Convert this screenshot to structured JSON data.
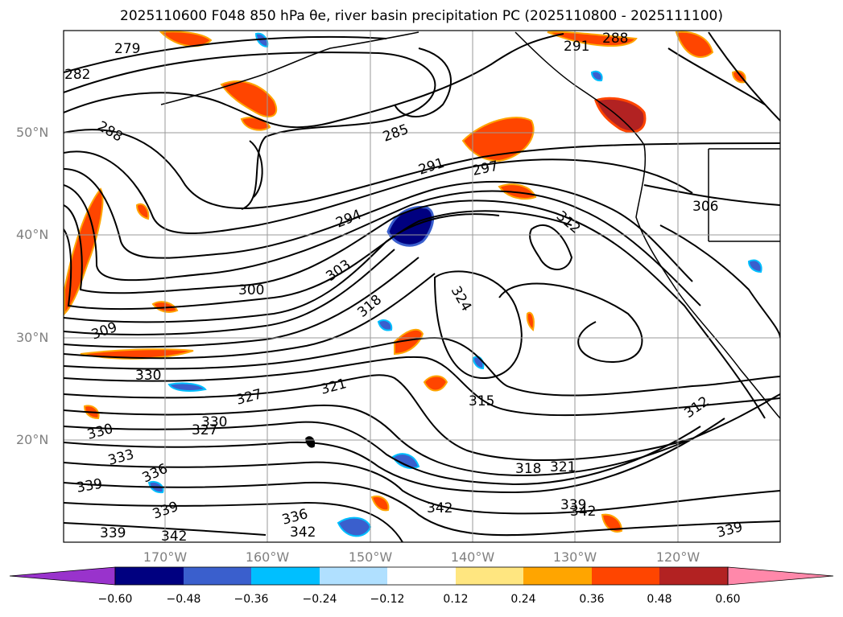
{
  "title": {
    "text": "2025110600 F048 850 hPa θe, river basin precipitation PC (2025110800 - 2025111100)"
  },
  "map": {
    "lat_labels": [
      "50°N",
      "40°N",
      "30°N",
      "20°N"
    ],
    "lon_labels": [
      "170°W",
      "160°W",
      "150°W",
      "140°W",
      "130°W",
      "120°W"
    ],
    "contour_labels": [
      "279",
      "282",
      "285",
      "288",
      "291",
      "294",
      "297",
      "300",
      "303",
      "306",
      "309",
      "312",
      "315",
      "318",
      "321",
      "324",
      "327",
      "330",
      "333",
      "336",
      "339",
      "342"
    ]
  },
  "colorbar": {
    "ticks": [
      "−0.60",
      "−0.48",
      "−0.36",
      "−0.24",
      "−0.12",
      "0.12",
      "0.24",
      "0.36",
      "0.48",
      "0.60"
    ],
    "colors": [
      "#9933cc",
      "#000080",
      "#3a5fcd",
      "#00bfff",
      "#b0e0ff",
      "#ffffff",
      "#ffe680",
      "#ffa500",
      "#ff4500",
      "#b22222",
      "#ff88aa"
    ]
  }
}
